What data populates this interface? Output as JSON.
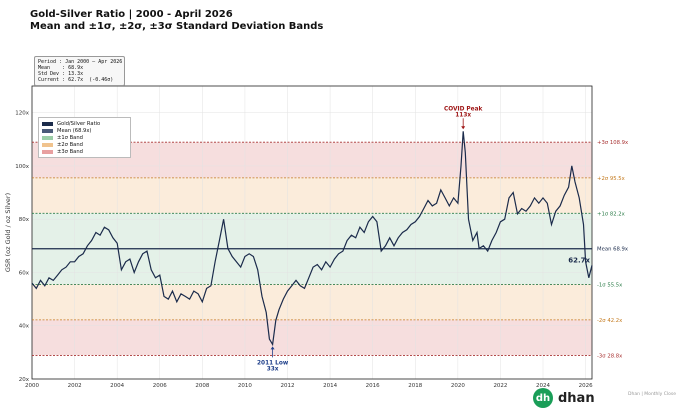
{
  "title": {
    "line1": "Gold-Silver Ratio  |  2000 - April 2026",
    "line2": "Mean and ±1σ, ±2σ, ±3σ Standard Deviation Bands"
  },
  "stats_box": {
    "lines": [
      "Period : Jan 2000 – Apr 2026",
      "Mean    : 68.9x",
      "Std Dev : 13.3x",
      "Current : 62.7x  (-0.46σ)"
    ]
  },
  "legend": [
    {
      "label": "Gold/Silver Ratio",
      "color": "#1b2b4b"
    },
    {
      "label": "Mean (68.9x)",
      "color": "#4a5a78"
    },
    {
      "label": "±1σ Band",
      "color": "#9ccfa8"
    },
    {
      "label": "±2σ Band",
      "color": "#f0c38e"
    },
    {
      "label": "±3σ Band",
      "color": "#e8a0a0"
    }
  ],
  "brand": {
    "logo_text": "dh",
    "name": "dhan"
  },
  "footer_note": "Dhan  |  Monthly Close",
  "chart_data": {
    "type": "line",
    "ylabel": "GSR (oz Gold / oz Silver)",
    "xlim": [
      2000,
      2026.3
    ],
    "ylim": [
      20,
      130
    ],
    "x_ticks": [
      "2000",
      "2002",
      "2004",
      "2006",
      "2008",
      "2010",
      "2012",
      "2014",
      "2016",
      "2018",
      "2020",
      "2022",
      "2024",
      "2026"
    ],
    "y_ticks": [
      "20x",
      "40x",
      "60x",
      "80x",
      "100x",
      "120x"
    ],
    "grid": true,
    "legend_position": "upper-left",
    "mean": 68.9,
    "std": 13.3,
    "bands": [
      {
        "label": "+3σ  108.9x",
        "value": 108.9,
        "color": "#a83232"
      },
      {
        "label": "+2σ  95.5x",
        "value": 95.5,
        "color": "#c47a1e"
      },
      {
        "label": "+1σ  82.2x",
        "value": 82.2,
        "color": "#2e7d4a"
      },
      {
        "label": "Mean  68.9x",
        "value": 68.9,
        "color": "#1b2b4b"
      },
      {
        "label": "-1σ  55.5x",
        "value": 55.5,
        "color": "#2e7d4a"
      },
      {
        "label": "-2σ  42.2x",
        "value": 42.2,
        "color": "#c47a1e"
      },
      {
        "label": "-3σ  28.8x",
        "value": 28.8,
        "color": "#a83232"
      }
    ],
    "annotations": [
      {
        "label": "COVID Peak",
        "value_label": "113x",
        "x": 2020.25,
        "y": 113
      },
      {
        "label": "2011 Low",
        "value_label": "33x",
        "x": 2011.3,
        "y": 33
      }
    ],
    "current_label": "62.7x",
    "current": 62.7,
    "series": [
      {
        "values": [
          [
            2000.0,
            56
          ],
          [
            2000.2,
            54
          ],
          [
            2000.4,
            57
          ],
          [
            2000.6,
            55
          ],
          [
            2000.8,
            58
          ],
          [
            2001.0,
            57
          ],
          [
            2001.2,
            59
          ],
          [
            2001.4,
            61
          ],
          [
            2001.6,
            62
          ],
          [
            2001.8,
            64
          ],
          [
            2002.0,
            64
          ],
          [
            2002.2,
            66
          ],
          [
            2002.4,
            67
          ],
          [
            2002.6,
            70
          ],
          [
            2002.8,
            72
          ],
          [
            2003.0,
            75
          ],
          [
            2003.2,
            74
          ],
          [
            2003.4,
            77
          ],
          [
            2003.6,
            76
          ],
          [
            2003.8,
            73
          ],
          [
            2004.0,
            71
          ],
          [
            2004.2,
            61
          ],
          [
            2004.4,
            64
          ],
          [
            2004.6,
            65
          ],
          [
            2004.8,
            60
          ],
          [
            2005.0,
            64
          ],
          [
            2005.2,
            67
          ],
          [
            2005.4,
            68
          ],
          [
            2005.6,
            61
          ],
          [
            2005.8,
            58
          ],
          [
            2006.0,
            59
          ],
          [
            2006.2,
            51
          ],
          [
            2006.4,
            50
          ],
          [
            2006.6,
            53
          ],
          [
            2006.8,
            49
          ],
          [
            2007.0,
            52
          ],
          [
            2007.2,
            51
          ],
          [
            2007.4,
            50
          ],
          [
            2007.6,
            53
          ],
          [
            2007.8,
            52
          ],
          [
            2008.0,
            49
          ],
          [
            2008.2,
            54
          ],
          [
            2008.4,
            55
          ],
          [
            2008.6,
            64
          ],
          [
            2008.8,
            72
          ],
          [
            2009.0,
            80
          ],
          [
            2009.2,
            69
          ],
          [
            2009.4,
            66
          ],
          [
            2009.6,
            64
          ],
          [
            2009.8,
            62
          ],
          [
            2010.0,
            66
          ],
          [
            2010.2,
            67
          ],
          [
            2010.4,
            66
          ],
          [
            2010.6,
            61
          ],
          [
            2010.8,
            51
          ],
          [
            2011.0,
            45
          ],
          [
            2011.15,
            35
          ],
          [
            2011.3,
            33
          ],
          [
            2011.45,
            42
          ],
          [
            2011.6,
            46
          ],
          [
            2011.8,
            50
          ],
          [
            2012.0,
            53
          ],
          [
            2012.2,
            55
          ],
          [
            2012.4,
            57
          ],
          [
            2012.6,
            55
          ],
          [
            2012.8,
            54
          ],
          [
            2013.0,
            58
          ],
          [
            2013.2,
            62
          ],
          [
            2013.4,
            63
          ],
          [
            2013.6,
            61
          ],
          [
            2013.8,
            64
          ],
          [
            2014.0,
            62
          ],
          [
            2014.2,
            65
          ],
          [
            2014.4,
            67
          ],
          [
            2014.6,
            68
          ],
          [
            2014.8,
            72
          ],
          [
            2015.0,
            74
          ],
          [
            2015.2,
            73
          ],
          [
            2015.4,
            77
          ],
          [
            2015.6,
            75
          ],
          [
            2015.8,
            79
          ],
          [
            2016.0,
            81
          ],
          [
            2016.2,
            79
          ],
          [
            2016.4,
            68
          ],
          [
            2016.6,
            70
          ],
          [
            2016.8,
            73
          ],
          [
            2017.0,
            70
          ],
          [
            2017.2,
            73
          ],
          [
            2017.4,
            75
          ],
          [
            2017.6,
            76
          ],
          [
            2017.8,
            78
          ],
          [
            2018.0,
            79
          ],
          [
            2018.2,
            81
          ],
          [
            2018.4,
            84
          ],
          [
            2018.6,
            87
          ],
          [
            2018.8,
            85
          ],
          [
            2019.0,
            86
          ],
          [
            2019.2,
            91
          ],
          [
            2019.4,
            88
          ],
          [
            2019.6,
            85
          ],
          [
            2019.8,
            88
          ],
          [
            2020.0,
            86
          ],
          [
            2020.15,
            100
          ],
          [
            2020.25,
            113
          ],
          [
            2020.35,
            105
          ],
          [
            2020.5,
            80
          ],
          [
            2020.7,
            72
          ],
          [
            2020.9,
            75
          ],
          [
            2021.0,
            69
          ],
          [
            2021.2,
            70
          ],
          [
            2021.4,
            68
          ],
          [
            2021.6,
            72
          ],
          [
            2021.8,
            75
          ],
          [
            2022.0,
            79
          ],
          [
            2022.2,
            80
          ],
          [
            2022.4,
            88
          ],
          [
            2022.6,
            90
          ],
          [
            2022.8,
            82
          ],
          [
            2023.0,
            84
          ],
          [
            2023.2,
            83
          ],
          [
            2023.4,
            85
          ],
          [
            2023.6,
            88
          ],
          [
            2023.8,
            86
          ],
          [
            2024.0,
            88
          ],
          [
            2024.2,
            86
          ],
          [
            2024.4,
            78
          ],
          [
            2024.6,
            83
          ],
          [
            2024.8,
            85
          ],
          [
            2025.0,
            89
          ],
          [
            2025.2,
            92
          ],
          [
            2025.35,
            100
          ],
          [
            2025.5,
            94
          ],
          [
            2025.7,
            88
          ],
          [
            2025.9,
            78
          ],
          [
            2026.0,
            64
          ],
          [
            2026.15,
            58
          ],
          [
            2026.3,
            62.7
          ]
        ]
      }
    ]
  }
}
